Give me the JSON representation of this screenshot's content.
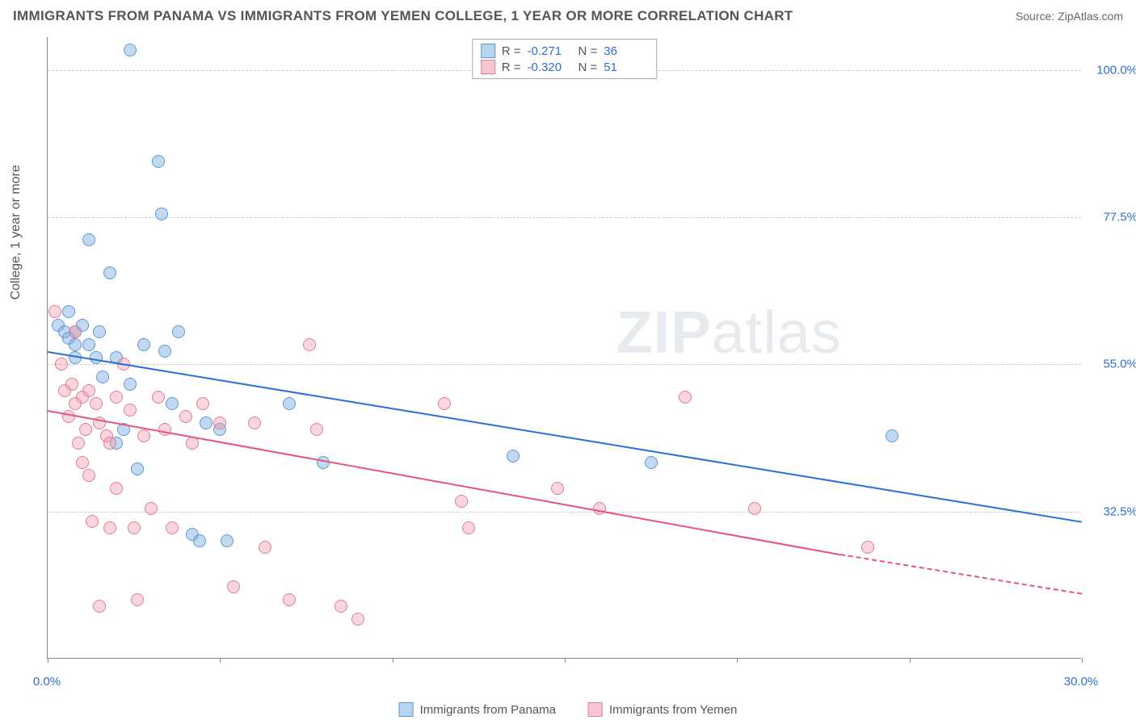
{
  "title": "IMMIGRANTS FROM PANAMA VS IMMIGRANTS FROM YEMEN COLLEGE, 1 YEAR OR MORE CORRELATION CHART",
  "source_label": "Source: ",
  "source_name": "ZipAtlas.com",
  "y_axis_label": "College, 1 year or more",
  "watermark_1": "ZIP",
  "watermark_2": "atlas",
  "chart": {
    "type": "scatter",
    "xlim": [
      0,
      30
    ],
    "ylim": [
      10,
      105
    ],
    "x_ticks": [
      0,
      5,
      10,
      15,
      20,
      25,
      30
    ],
    "x_tick_labels": [
      "0.0%",
      "",
      "",
      "",
      "",
      "",
      "30.0%"
    ],
    "y_ticks": [
      32.5,
      55.0,
      77.5,
      100.0
    ],
    "y_tick_labels": [
      "32.5%",
      "55.0%",
      "77.5%",
      "100.0%"
    ],
    "grid_color": "#cccccc",
    "background_color": "#ffffff",
    "point_radius": 8,
    "series": [
      {
        "name": "Immigrants from Panama",
        "fill": "rgba(120,170,225,0.45)",
        "stroke": "#5a9bd5",
        "swatch_fill": "#b9d4ef",
        "swatch_stroke": "#5a9bd5",
        "r_value": "-0.271",
        "n_value": "36",
        "trend": {
          "x1": 0,
          "y1": 57,
          "x2": 30,
          "y2": 31,
          "color": "#2a6fd6"
        },
        "points": [
          [
            0.3,
            61
          ],
          [
            0.5,
            60
          ],
          [
            0.6,
            59
          ],
          [
            0.6,
            63
          ],
          [
            0.8,
            56
          ],
          [
            0.8,
            60
          ],
          [
            0.8,
            58
          ],
          [
            1.0,
            61
          ],
          [
            1.2,
            58
          ],
          [
            1.2,
            74
          ],
          [
            1.4,
            56
          ],
          [
            1.5,
            60
          ],
          [
            1.6,
            53
          ],
          [
            1.8,
            69
          ],
          [
            2.0,
            56
          ],
          [
            2.0,
            43
          ],
          [
            2.2,
            45
          ],
          [
            2.4,
            103
          ],
          [
            2.4,
            52
          ],
          [
            2.6,
            39
          ],
          [
            2.8,
            58
          ],
          [
            3.2,
            86
          ],
          [
            3.3,
            78
          ],
          [
            3.4,
            57
          ],
          [
            3.6,
            49
          ],
          [
            3.8,
            60
          ],
          [
            4.2,
            29
          ],
          [
            4.4,
            28
          ],
          [
            4.6,
            46
          ],
          [
            5.0,
            45
          ],
          [
            5.2,
            28
          ],
          [
            7.0,
            49
          ],
          [
            8.0,
            40
          ],
          [
            13.5,
            41
          ],
          [
            17.5,
            40
          ],
          [
            24.5,
            44
          ]
        ]
      },
      {
        "name": "Immigrants from Yemen",
        "fill": "rgba(240,150,170,0.4)",
        "stroke": "#e37d99",
        "swatch_fill": "#f6c6d2",
        "swatch_stroke": "#e37d99",
        "r_value": "-0.320",
        "n_value": "51",
        "trend": {
          "x1": 0,
          "y1": 48,
          "x2": 23,
          "y2": 26,
          "color": "#e75480",
          "dashed_to": 30,
          "dashed_y": 20
        },
        "points": [
          [
            0.2,
            63
          ],
          [
            0.4,
            55
          ],
          [
            0.5,
            51
          ],
          [
            0.6,
            47
          ],
          [
            0.7,
            52
          ],
          [
            0.8,
            49
          ],
          [
            0.8,
            60
          ],
          [
            0.9,
            43
          ],
          [
            1.0,
            50
          ],
          [
            1.0,
            40
          ],
          [
            1.1,
            45
          ],
          [
            1.2,
            51
          ],
          [
            1.2,
            38
          ],
          [
            1.3,
            31
          ],
          [
            1.4,
            49
          ],
          [
            1.5,
            46
          ],
          [
            1.5,
            18
          ],
          [
            1.7,
            44
          ],
          [
            1.8,
            30
          ],
          [
            1.8,
            43
          ],
          [
            2.0,
            50
          ],
          [
            2.0,
            36
          ],
          [
            2.2,
            55
          ],
          [
            2.4,
            48
          ],
          [
            2.5,
            30
          ],
          [
            2.6,
            19
          ],
          [
            2.8,
            44
          ],
          [
            3.0,
            33
          ],
          [
            3.2,
            50
          ],
          [
            3.4,
            45
          ],
          [
            3.6,
            30
          ],
          [
            4.0,
            47
          ],
          [
            4.2,
            43
          ],
          [
            4.5,
            49
          ],
          [
            5.0,
            46
          ],
          [
            5.4,
            21
          ],
          [
            6.0,
            46
          ],
          [
            6.3,
            27
          ],
          [
            7.0,
            19
          ],
          [
            7.6,
            58
          ],
          [
            7.8,
            45
          ],
          [
            8.5,
            18
          ],
          [
            9.0,
            16
          ],
          [
            11.5,
            49
          ],
          [
            12.0,
            34
          ],
          [
            12.2,
            30
          ],
          [
            14.8,
            36
          ],
          [
            16.0,
            33
          ],
          [
            18.5,
            50
          ],
          [
            20.5,
            33
          ],
          [
            23.8,
            27
          ]
        ]
      }
    ],
    "legend_labels": [
      "Immigrants from Panama",
      "Immigrants from Yemen"
    ],
    "stats_box": {
      "r_label": "R  =",
      "n_label": "N  ="
    }
  }
}
